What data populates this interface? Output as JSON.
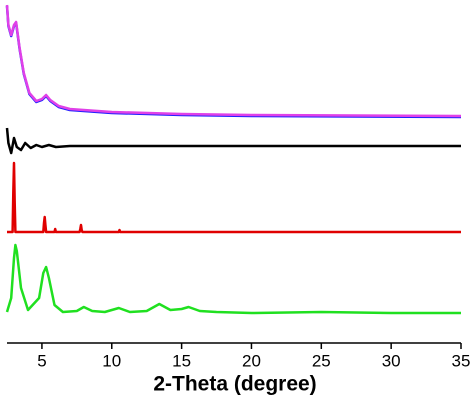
{
  "chart_data": {
    "type": "line",
    "xlabel": "2-Theta (degree)",
    "xlim": [
      2.5,
      35
    ],
    "xticks": [
      5,
      10,
      15,
      20,
      25,
      30,
      35
    ],
    "ylim": [
      0,
      340
    ],
    "series": [
      {
        "color": "#2020ff",
        "x": [
          2.5,
          2.6,
          2.8,
          3.0,
          3.15,
          3.4,
          3.7,
          4.1,
          4.6,
          5.0,
          5.3,
          5.6,
          6.2,
          7,
          8,
          10,
          15,
          20,
          35
        ],
        "values": [
          337,
          317,
          307,
          317,
          320,
          294,
          269,
          249,
          241,
          243,
          247,
          242,
          236,
          233,
          232,
          230,
          228,
          227,
          226
        ]
      },
      {
        "color": "#e040e8",
        "x": [
          2.5,
          2.6,
          2.8,
          3.0,
          3.15,
          3.4,
          3.7,
          4.1,
          4.6,
          5.0,
          5.3,
          5.6,
          6.2,
          7,
          8,
          10,
          15,
          20,
          35
        ],
        "values": [
          338,
          318,
          308,
          318,
          321,
          295,
          270,
          250,
          242,
          244,
          248,
          243,
          237,
          234,
          233,
          231,
          229,
          228,
          227
        ]
      },
      {
        "color": "#000000",
        "x": [
          2.5,
          2.6,
          2.8,
          3.0,
          3.2,
          3.5,
          3.8,
          4.2,
          4.6,
          5.0,
          5.5,
          6.0,
          7,
          8,
          10,
          35
        ],
        "values": [
          215,
          200,
          190,
          205,
          196,
          193,
          200,
          195,
          198,
          196,
          198,
          196,
          197,
          197,
          197,
          197
        ]
      },
      {
        "color": "#e00000",
        "x": [
          2.5,
          2.9,
          2.95,
          3.0,
          3.05,
          3.1,
          5.1,
          5.15,
          5.2,
          5.25,
          5.3,
          5.9,
          5.95,
          6.0,
          7.7,
          7.75,
          7.8,
          7.85,
          7.9,
          10.5,
          10.55,
          10.6,
          35
        ],
        "values": [
          111,
          111,
          150,
          180,
          140,
          111,
          111,
          120,
          126,
          118,
          111,
          111,
          114,
          111,
          111,
          114,
          118,
          113,
          111,
          111,
          113,
          111,
          111
        ]
      },
      {
        "color": "#20e020",
        "x": [
          2.5,
          2.8,
          3.0,
          3.1,
          3.2,
          3.5,
          4.0,
          4.8,
          5.1,
          5.3,
          5.5,
          5.9,
          6.5,
          7.5,
          8.0,
          8.6,
          9.5,
          10.5,
          11.3,
          12.5,
          13.4,
          14.2,
          15.0,
          15.5,
          16.3,
          17.5,
          20,
          25,
          30,
          35
        ],
        "values": [
          31,
          45,
          85,
          98,
          92,
          55,
          33,
          45,
          70,
          76,
          65,
          38,
          31,
          32,
          36,
          32,
          31,
          35,
          31,
          32,
          39,
          33,
          34,
          36,
          32,
          31,
          30,
          31,
          30,
          30
        ]
      }
    ]
  }
}
